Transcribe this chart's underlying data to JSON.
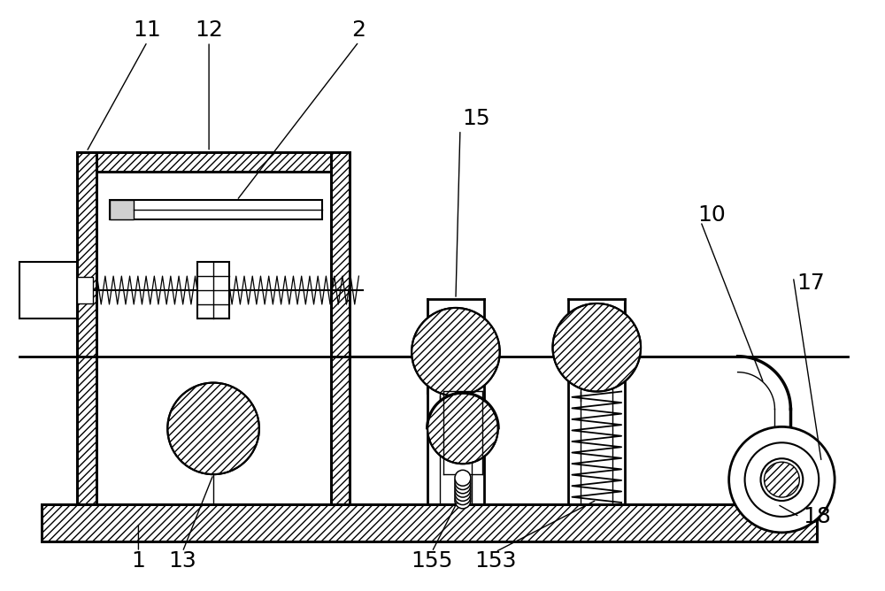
{
  "bg_color": "#ffffff",
  "line_color": "#000000",
  "figsize": [
    10.0,
    6.68
  ],
  "label_fontsize": 18
}
